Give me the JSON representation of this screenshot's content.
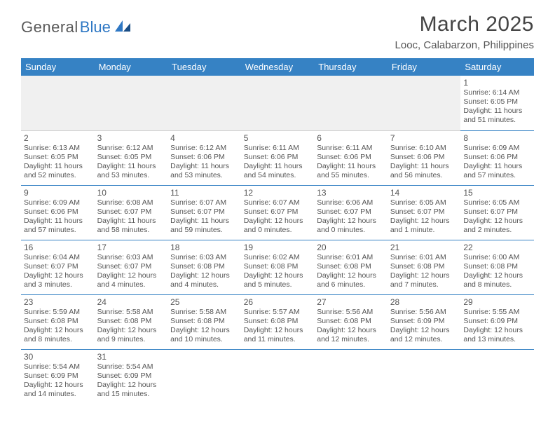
{
  "brand": {
    "general": "General",
    "blue": "Blue"
  },
  "header": {
    "title": "March 2025",
    "location": "Looc, Calabarzon, Philippines"
  },
  "colors": {
    "headerBg": "#3682c4",
    "headerText": "#ffffff",
    "rule": "#3682c4",
    "bodyText": "#555555"
  },
  "dayHeaders": [
    "Sunday",
    "Monday",
    "Tuesday",
    "Wednesday",
    "Thursday",
    "Friday",
    "Saturday"
  ],
  "weeks": [
    [
      null,
      null,
      null,
      null,
      null,
      null,
      {
        "n": "1",
        "sr": "Sunrise: 6:14 AM",
        "ss": "Sunset: 6:05 PM",
        "dl": "Daylight: 11 hours and 51 minutes."
      }
    ],
    [
      {
        "n": "2",
        "sr": "Sunrise: 6:13 AM",
        "ss": "Sunset: 6:05 PM",
        "dl": "Daylight: 11 hours and 52 minutes."
      },
      {
        "n": "3",
        "sr": "Sunrise: 6:12 AM",
        "ss": "Sunset: 6:05 PM",
        "dl": "Daylight: 11 hours and 53 minutes."
      },
      {
        "n": "4",
        "sr": "Sunrise: 6:12 AM",
        "ss": "Sunset: 6:06 PM",
        "dl": "Daylight: 11 hours and 53 minutes."
      },
      {
        "n": "5",
        "sr": "Sunrise: 6:11 AM",
        "ss": "Sunset: 6:06 PM",
        "dl": "Daylight: 11 hours and 54 minutes."
      },
      {
        "n": "6",
        "sr": "Sunrise: 6:11 AM",
        "ss": "Sunset: 6:06 PM",
        "dl": "Daylight: 11 hours and 55 minutes."
      },
      {
        "n": "7",
        "sr": "Sunrise: 6:10 AM",
        "ss": "Sunset: 6:06 PM",
        "dl": "Daylight: 11 hours and 56 minutes."
      },
      {
        "n": "8",
        "sr": "Sunrise: 6:09 AM",
        "ss": "Sunset: 6:06 PM",
        "dl": "Daylight: 11 hours and 57 minutes."
      }
    ],
    [
      {
        "n": "9",
        "sr": "Sunrise: 6:09 AM",
        "ss": "Sunset: 6:06 PM",
        "dl": "Daylight: 11 hours and 57 minutes."
      },
      {
        "n": "10",
        "sr": "Sunrise: 6:08 AM",
        "ss": "Sunset: 6:07 PM",
        "dl": "Daylight: 11 hours and 58 minutes."
      },
      {
        "n": "11",
        "sr": "Sunrise: 6:07 AM",
        "ss": "Sunset: 6:07 PM",
        "dl": "Daylight: 11 hours and 59 minutes."
      },
      {
        "n": "12",
        "sr": "Sunrise: 6:07 AM",
        "ss": "Sunset: 6:07 PM",
        "dl": "Daylight: 12 hours and 0 minutes."
      },
      {
        "n": "13",
        "sr": "Sunrise: 6:06 AM",
        "ss": "Sunset: 6:07 PM",
        "dl": "Daylight: 12 hours and 0 minutes."
      },
      {
        "n": "14",
        "sr": "Sunrise: 6:05 AM",
        "ss": "Sunset: 6:07 PM",
        "dl": "Daylight: 12 hours and 1 minute."
      },
      {
        "n": "15",
        "sr": "Sunrise: 6:05 AM",
        "ss": "Sunset: 6:07 PM",
        "dl": "Daylight: 12 hours and 2 minutes."
      }
    ],
    [
      {
        "n": "16",
        "sr": "Sunrise: 6:04 AM",
        "ss": "Sunset: 6:07 PM",
        "dl": "Daylight: 12 hours and 3 minutes."
      },
      {
        "n": "17",
        "sr": "Sunrise: 6:03 AM",
        "ss": "Sunset: 6:07 PM",
        "dl": "Daylight: 12 hours and 4 minutes."
      },
      {
        "n": "18",
        "sr": "Sunrise: 6:03 AM",
        "ss": "Sunset: 6:08 PM",
        "dl": "Daylight: 12 hours and 4 minutes."
      },
      {
        "n": "19",
        "sr": "Sunrise: 6:02 AM",
        "ss": "Sunset: 6:08 PM",
        "dl": "Daylight: 12 hours and 5 minutes."
      },
      {
        "n": "20",
        "sr": "Sunrise: 6:01 AM",
        "ss": "Sunset: 6:08 PM",
        "dl": "Daylight: 12 hours and 6 minutes."
      },
      {
        "n": "21",
        "sr": "Sunrise: 6:01 AM",
        "ss": "Sunset: 6:08 PM",
        "dl": "Daylight: 12 hours and 7 minutes."
      },
      {
        "n": "22",
        "sr": "Sunrise: 6:00 AM",
        "ss": "Sunset: 6:08 PM",
        "dl": "Daylight: 12 hours and 8 minutes."
      }
    ],
    [
      {
        "n": "23",
        "sr": "Sunrise: 5:59 AM",
        "ss": "Sunset: 6:08 PM",
        "dl": "Daylight: 12 hours and 8 minutes."
      },
      {
        "n": "24",
        "sr": "Sunrise: 5:58 AM",
        "ss": "Sunset: 6:08 PM",
        "dl": "Daylight: 12 hours and 9 minutes."
      },
      {
        "n": "25",
        "sr": "Sunrise: 5:58 AM",
        "ss": "Sunset: 6:08 PM",
        "dl": "Daylight: 12 hours and 10 minutes."
      },
      {
        "n": "26",
        "sr": "Sunrise: 5:57 AM",
        "ss": "Sunset: 6:08 PM",
        "dl": "Daylight: 12 hours and 11 minutes."
      },
      {
        "n": "27",
        "sr": "Sunrise: 5:56 AM",
        "ss": "Sunset: 6:08 PM",
        "dl": "Daylight: 12 hours and 12 minutes."
      },
      {
        "n": "28",
        "sr": "Sunrise: 5:56 AM",
        "ss": "Sunset: 6:09 PM",
        "dl": "Daylight: 12 hours and 12 minutes."
      },
      {
        "n": "29",
        "sr": "Sunrise: 5:55 AM",
        "ss": "Sunset: 6:09 PM",
        "dl": "Daylight: 12 hours and 13 minutes."
      }
    ],
    [
      {
        "n": "30",
        "sr": "Sunrise: 5:54 AM",
        "ss": "Sunset: 6:09 PM",
        "dl": "Daylight: 12 hours and 14 minutes."
      },
      {
        "n": "31",
        "sr": "Sunrise: 5:54 AM",
        "ss": "Sunset: 6:09 PM",
        "dl": "Daylight: 12 hours and 15 minutes."
      },
      null,
      null,
      null,
      null,
      null
    ]
  ]
}
